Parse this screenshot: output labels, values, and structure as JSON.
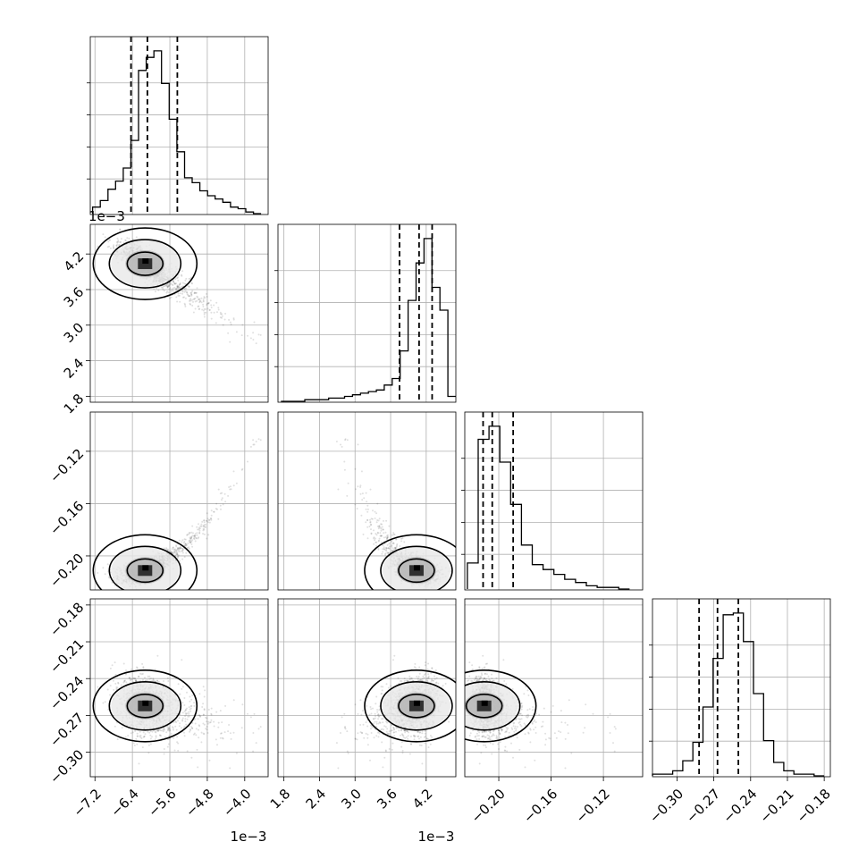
{
  "chart_data": {
    "type": "corner",
    "parameters": [
      {
        "index": 0,
        "range": [
          -7.3,
          -3.5
        ],
        "ticks": [
          -7.2,
          -6.4,
          -5.6,
          -4.8,
          -4.0
        ],
        "tick_labels": [
          "−7.2",
          "−6.4",
          "−5.6",
          "−4.8",
          "−4.0"
        ],
        "offset_text": "1e−3",
        "quantiles": [
          -6.43,
          -6.08,
          -5.44
        ]
      },
      {
        "index": 1,
        "range": [
          1.7,
          4.7
        ],
        "ticks": [
          1.8,
          2.4,
          3.0,
          3.6,
          4.2
        ],
        "tick_labels": [
          "1.8",
          "2.4",
          "3.0",
          "3.6",
          "4.2"
        ],
        "offset_text": "1e−3",
        "quantiles": [
          3.75,
          4.08,
          4.3
        ]
      },
      {
        "index": 2,
        "range": [
          -0.226,
          -0.09
        ],
        "ticks": [
          -0.2,
          -0.16,
          -0.12
        ],
        "tick_labels": [
          "−0.20",
          "−0.16",
          "−0.12"
        ],
        "y_ticks": [
          -0.2,
          -0.16,
          -0.12
        ],
        "y_tick_labels": [
          "−0.20",
          "−0.16",
          "−0.12"
        ],
        "quantiles": [
          -0.212,
          -0.205,
          -0.189
        ]
      },
      {
        "index": 3,
        "range": [
          -0.32,
          -0.175
        ],
        "ticks": [
          -0.3,
          -0.27,
          -0.24,
          -0.21,
          -0.18
        ],
        "tick_labels": [
          "−0.30",
          "−0.27",
          "−0.24",
          "−0.21",
          "−0.18"
        ],
        "y_ticks": [
          -0.3,
          -0.27,
          -0.24,
          -0.21,
          -0.18
        ],
        "y_tick_labels": [
          "−0.30",
          "−0.27",
          "−0.24",
          "−0.21",
          "−0.18"
        ],
        "quantiles": [
          -0.282,
          -0.267,
          -0.25
        ]
      }
    ],
    "histograms": [
      {
        "param": 0,
        "edges_range": [
          -7.25,
          -3.65
        ],
        "counts": [
          4,
          8,
          15,
          20,
          28,
          45,
          88,
          96,
          100,
          80,
          58,
          38,
          22,
          19,
          14,
          11,
          9,
          7,
          4,
          3,
          1,
          0
        ]
      },
      {
        "param": 1,
        "edges_range": [
          1.75,
          4.7
        ],
        "counts": [
          0,
          0,
          0,
          1,
          1,
          1,
          2,
          2,
          3,
          4,
          5,
          6,
          7,
          10,
          14,
          31,
          62,
          85,
          100,
          70,
          56,
          3
        ]
      },
      {
        "param": 2,
        "edges_range": [
          -0.224,
          -0.1
        ],
        "counts": [
          16,
          92,
          100,
          78,
          52,
          27,
          15,
          12,
          9,
          6,
          4,
          2,
          1,
          1,
          0
        ]
      },
      {
        "param": 3,
        "edges_range": [
          -0.32,
          -0.18
        ],
        "counts": [
          1,
          1,
          3,
          9,
          20,
          41,
          70,
          96,
          97,
          80,
          49,
          21,
          8,
          3,
          1,
          1,
          0
        ]
      }
    ],
    "grid": true,
    "histtype": "step"
  }
}
